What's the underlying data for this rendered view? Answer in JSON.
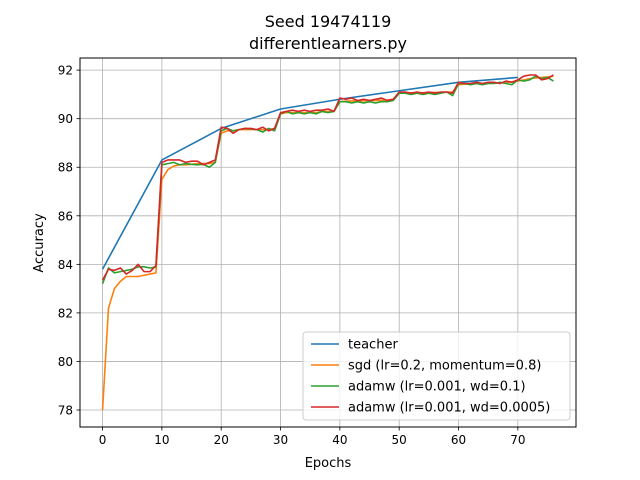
{
  "chart_data": {
    "type": "line",
    "title": "Seed 19474119",
    "subtitle": "differentlearners.py",
    "xlabel": "Epochs",
    "ylabel": "Accuracy",
    "xlim": [
      -3.8,
      79.8
    ],
    "ylim": [
      77.3,
      92.5
    ],
    "xticks": [
      0,
      10,
      20,
      30,
      40,
      50,
      60,
      70
    ],
    "yticks": [
      78,
      80,
      82,
      84,
      86,
      88,
      90,
      92
    ],
    "grid": true,
    "legend_position": "bottom-right",
    "series": [
      {
        "name": "teacher",
        "color": "#1f77b4",
        "x": [
          0,
          10,
          20,
          30,
          40,
          50,
          60,
          70
        ],
        "values": [
          83.8,
          88.3,
          89.6,
          90.4,
          90.8,
          91.15,
          91.5,
          91.7
        ]
      },
      {
        "name": "sgd (lr=0.2, momentum=0.8)",
        "color": "#ff7f0e",
        "x": [
          0,
          1,
          2,
          3,
          4,
          5,
          6,
          7,
          8,
          9,
          10,
          11,
          12,
          13,
          14,
          15,
          16,
          17,
          18,
          19,
          20,
          21,
          22,
          23,
          24,
          25,
          26,
          27,
          28,
          29,
          30,
          31,
          32,
          33,
          34,
          35,
          36,
          37,
          38,
          39,
          40,
          41,
          42,
          43,
          44,
          45,
          46,
          47,
          48,
          49,
          50,
          51,
          52,
          53,
          54,
          55,
          56,
          57,
          58,
          59,
          60,
          61,
          62,
          63,
          64,
          65,
          66,
          67,
          68,
          69,
          70,
          71,
          72,
          73,
          74,
          75,
          76
        ],
        "values": [
          78.0,
          82.2,
          83.0,
          83.3,
          83.5,
          83.5,
          83.5,
          83.55,
          83.6,
          83.65,
          87.5,
          87.9,
          88.05,
          88.1,
          88.1,
          88.12,
          88.15,
          88.15,
          88.15,
          88.2,
          89.4,
          89.5,
          89.5,
          89.55,
          89.55,
          89.55,
          89.55,
          89.55,
          89.55,
          89.6,
          90.2,
          90.25,
          90.25,
          90.25,
          90.25,
          90.25,
          90.25,
          90.3,
          90.3,
          90.3,
          90.7,
          90.72,
          90.73,
          90.73,
          90.74,
          90.75,
          90.75,
          90.76,
          90.77,
          90.8,
          91.05,
          91.06,
          91.06,
          91.07,
          91.07,
          91.08,
          91.08,
          91.08,
          91.09,
          91.1,
          91.4,
          91.42,
          91.43,
          91.44,
          91.45,
          91.46,
          91.47,
          91.48,
          91.5,
          91.52,
          91.55,
          91.6,
          91.65,
          91.68,
          91.7,
          91.72,
          91.75
        ]
      },
      {
        "name": "adamw (lr=0.001, wd=0.1)",
        "color": "#2ca02c",
        "x": [
          0,
          1,
          2,
          3,
          4,
          5,
          6,
          7,
          8,
          9,
          10,
          11,
          12,
          13,
          14,
          15,
          16,
          17,
          18,
          19,
          20,
          21,
          22,
          23,
          24,
          25,
          26,
          27,
          28,
          29,
          30,
          31,
          32,
          33,
          34,
          35,
          36,
          37,
          38,
          39,
          40,
          41,
          42,
          43,
          44,
          45,
          46,
          47,
          48,
          49,
          50,
          51,
          52,
          53,
          54,
          55,
          56,
          57,
          58,
          59,
          60,
          61,
          62,
          63,
          64,
          65,
          66,
          67,
          68,
          69,
          70,
          71,
          72,
          73,
          74,
          75,
          76
        ],
        "values": [
          83.2,
          83.85,
          83.65,
          83.7,
          83.75,
          83.8,
          83.9,
          83.9,
          83.85,
          83.9,
          88.1,
          88.15,
          88.2,
          88.1,
          88.15,
          88.12,
          88.1,
          88.12,
          88.0,
          88.2,
          89.5,
          89.6,
          89.5,
          89.55,
          89.6,
          89.58,
          89.55,
          89.45,
          89.6,
          89.5,
          90.2,
          90.3,
          90.2,
          90.25,
          90.2,
          90.25,
          90.2,
          90.3,
          90.25,
          90.3,
          90.7,
          90.7,
          90.65,
          90.7,
          90.65,
          90.7,
          90.65,
          90.7,
          90.7,
          90.75,
          91.05,
          91.05,
          91.0,
          91.05,
          91.0,
          91.05,
          91.0,
          91.05,
          91.1,
          90.95,
          91.45,
          91.45,
          91.4,
          91.45,
          91.4,
          91.45,
          91.45,
          91.5,
          91.45,
          91.4,
          91.6,
          91.55,
          91.6,
          91.75,
          91.65,
          91.7,
          91.55
        ]
      },
      {
        "name": "adamw (lr=0.001, wd=0.0005)",
        "color": "#d62728",
        "x": [
          0,
          1,
          2,
          3,
          4,
          5,
          6,
          7,
          8,
          9,
          10,
          11,
          12,
          13,
          14,
          15,
          16,
          17,
          18,
          19,
          20,
          21,
          22,
          23,
          24,
          25,
          26,
          27,
          28,
          29,
          30,
          31,
          32,
          33,
          34,
          35,
          36,
          37,
          38,
          39,
          40,
          41,
          42,
          43,
          44,
          45,
          46,
          47,
          48,
          49,
          50,
          51,
          52,
          53,
          54,
          55,
          56,
          57,
          58,
          59,
          60,
          61,
          62,
          63,
          64,
          65,
          66,
          67,
          68,
          69,
          70,
          71,
          72,
          73,
          74,
          75,
          76
        ],
        "values": [
          83.35,
          83.8,
          83.75,
          83.85,
          83.6,
          83.75,
          84.0,
          83.7,
          83.7,
          83.95,
          88.2,
          88.3,
          88.3,
          88.3,
          88.2,
          88.25,
          88.25,
          88.1,
          88.2,
          88.3,
          89.65,
          89.6,
          89.4,
          89.55,
          89.6,
          89.6,
          89.55,
          89.65,
          89.5,
          89.6,
          90.25,
          90.3,
          90.35,
          90.3,
          90.35,
          90.3,
          90.35,
          90.35,
          90.4,
          90.3,
          90.85,
          90.8,
          90.85,
          90.75,
          90.8,
          90.75,
          90.8,
          90.85,
          90.75,
          90.8,
          91.1,
          91.1,
          91.05,
          91.1,
          91.05,
          91.1,
          91.05,
          91.1,
          91.1,
          91.05,
          91.5,
          91.45,
          91.45,
          91.5,
          91.45,
          91.5,
          91.5,
          91.45,
          91.55,
          91.5,
          91.6,
          91.75,
          91.8,
          91.8,
          91.6,
          91.65,
          91.8
        ]
      }
    ]
  }
}
